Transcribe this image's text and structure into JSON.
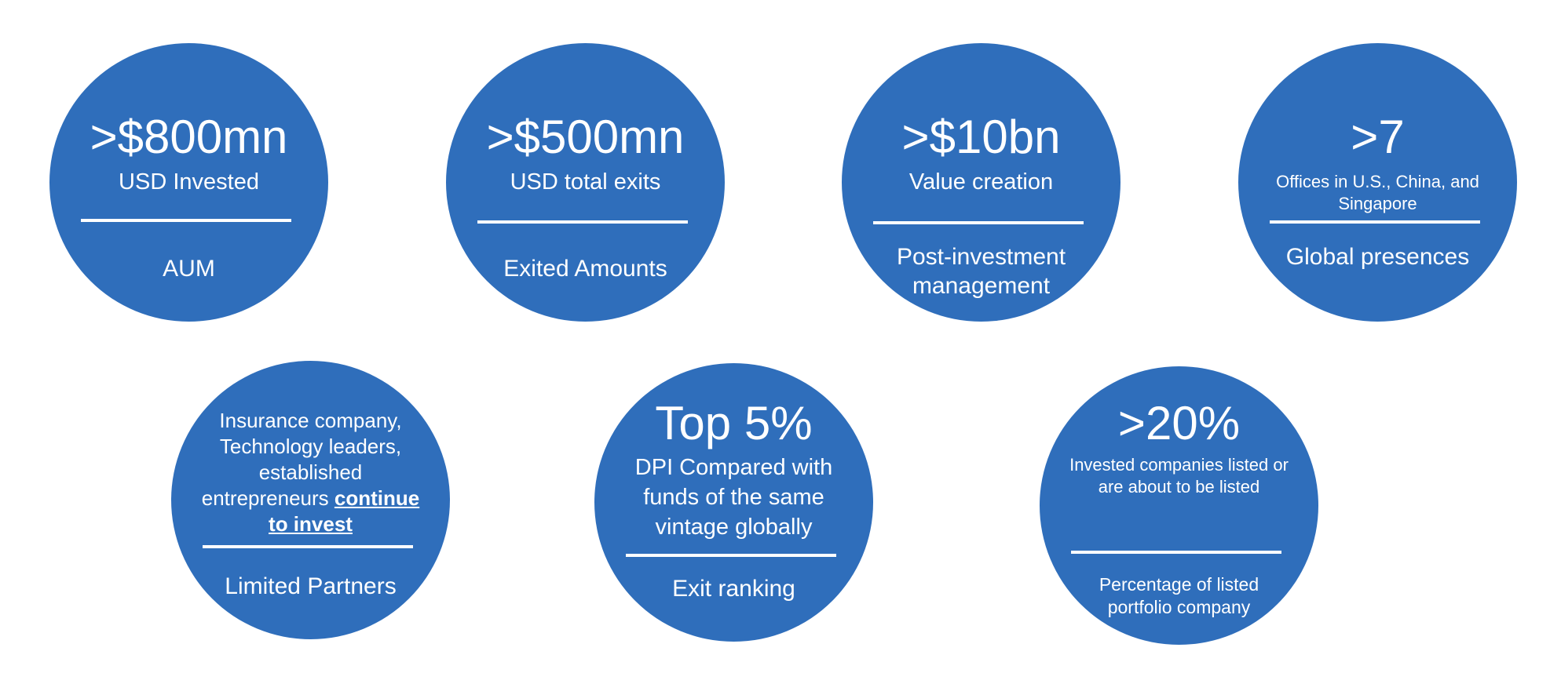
{
  "colors": {
    "circle_fill": "#2f6ebb",
    "text": "#ffffff",
    "background": "#ffffff"
  },
  "stats": {
    "aum": {
      "headline": ">$800mn",
      "subtitle": "USD Invested",
      "label": "AUM"
    },
    "exits": {
      "headline": ">$500mn",
      "subtitle": "USD total exits",
      "label": "Exited Amounts"
    },
    "value_creation": {
      "headline": ">$10bn",
      "subtitle": "Value creation",
      "label_line1": "Post-investment",
      "label_line2": "management"
    },
    "offices": {
      "headline": ">7",
      "subtitle_line1": "Offices in U.S., China, and",
      "subtitle_line2": "Singapore",
      "label": "Global presences"
    },
    "limited_partners": {
      "line1": "Insurance company,",
      "line2": "Technology leaders,",
      "line3": "established",
      "line4_plain": "entrepreneurs ",
      "line4_emph": "continue",
      "line5_emph": "to invest",
      "label": "Limited Partners"
    },
    "exit_ranking": {
      "headline": "Top 5%",
      "line1": "DPI Compared with",
      "line2": "funds of the same",
      "line3": "vintage globally",
      "label": "Exit ranking"
    },
    "listed": {
      "headline": ">20%",
      "subtitle_line1": "Invested companies listed or",
      "subtitle_line2": "are about to be listed",
      "label_line1": "Percentage of listed",
      "label_line2": "portfolio company"
    }
  }
}
